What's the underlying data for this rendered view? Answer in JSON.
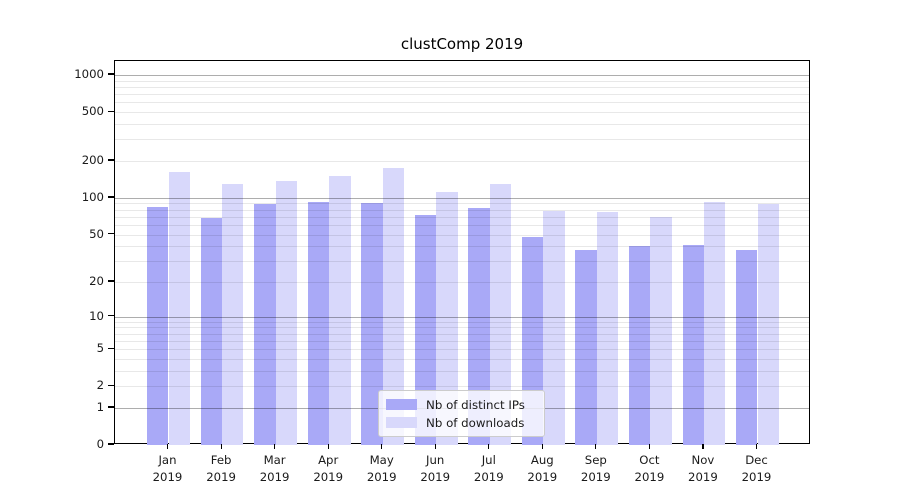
{
  "chart_data": {
    "type": "bar",
    "title": "clustComp 2019",
    "categories": [
      "Jan",
      "Feb",
      "Mar",
      "Apr",
      "May",
      "Jun",
      "Jul",
      "Aug",
      "Sep",
      "Oct",
      "Nov",
      "Dec"
    ],
    "year_label": "2019",
    "series": [
      {
        "name": "Nb of distinct IPs",
        "color": "#a9a9f7",
        "values": [
          85,
          68,
          89,
          92,
          90,
          72,
          82,
          48,
          37,
          40,
          41,
          37
        ]
      },
      {
        "name": "Nb of downloads",
        "color": "#d8d8fb",
        "values": [
          164,
          130,
          138,
          152,
          176,
          111,
          130,
          78,
          77,
          70,
          92,
          89
        ]
      }
    ],
    "y_scale": "log1p",
    "y_ticks": [
      0,
      1,
      2,
      5,
      10,
      20,
      50,
      100,
      200,
      500,
      1000
    ],
    "ylim": [
      0,
      1300
    ],
    "grid": true,
    "legend_position": "lower center",
    "colors": {
      "major_grid": "rgba(0,0,0,0.32)",
      "minor_grid": "rgba(0,0,0,0.09)",
      "axis": "#000000",
      "text": "#1a1a1a"
    }
  }
}
